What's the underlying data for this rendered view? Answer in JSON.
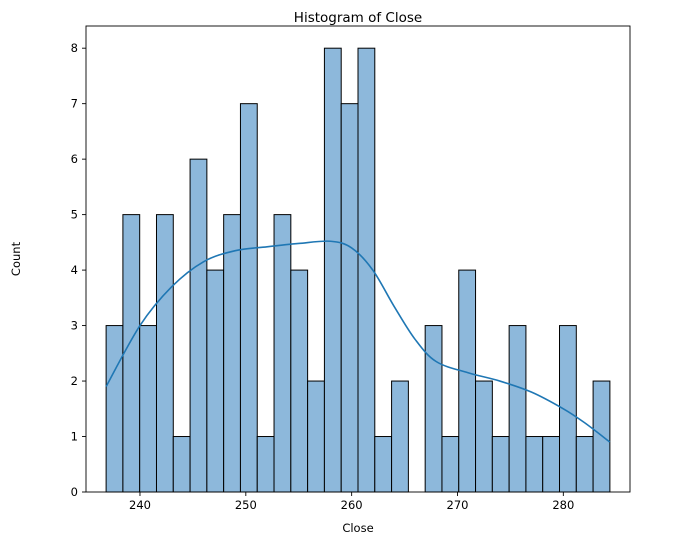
{
  "chart_data": {
    "type": "bar",
    "title": "Histogram of Close",
    "xlabel": "Close",
    "ylabel": "Count",
    "xlim": [
      234.9,
      286.3
    ],
    "ylim": [
      0,
      8.4
    ],
    "x_ticks": [
      240,
      250,
      260,
      270,
      280
    ],
    "y_ticks": [
      0,
      1,
      2,
      3,
      4,
      5,
      6,
      7,
      8
    ],
    "bin_range": [
      236.8,
      284.4
    ],
    "counts": [
      3,
      5,
      3,
      5,
      1,
      6,
      4,
      5,
      7,
      1,
      5,
      4,
      2,
      8,
      7,
      8,
      1,
      2,
      0,
      3,
      1,
      4,
      2,
      1,
      3,
      1,
      1,
      3,
      1,
      2
    ],
    "kde": {
      "x": [
        236.8,
        240,
        243,
        246,
        249,
        252,
        255,
        258,
        260,
        262,
        264,
        266,
        268,
        271,
        274,
        277,
        280,
        282,
        284.4
      ],
      "y": [
        1.9,
        3.0,
        3.7,
        4.15,
        4.35,
        4.42,
        4.48,
        4.52,
        4.4,
        4.0,
        3.35,
        2.75,
        2.35,
        2.15,
        2.0,
        1.8,
        1.5,
        1.25,
        0.9
      ]
    },
    "grid": false,
    "colors": {
      "bar": "#8db8db",
      "edge": "#000000",
      "kde": "#1f77b4"
    }
  }
}
